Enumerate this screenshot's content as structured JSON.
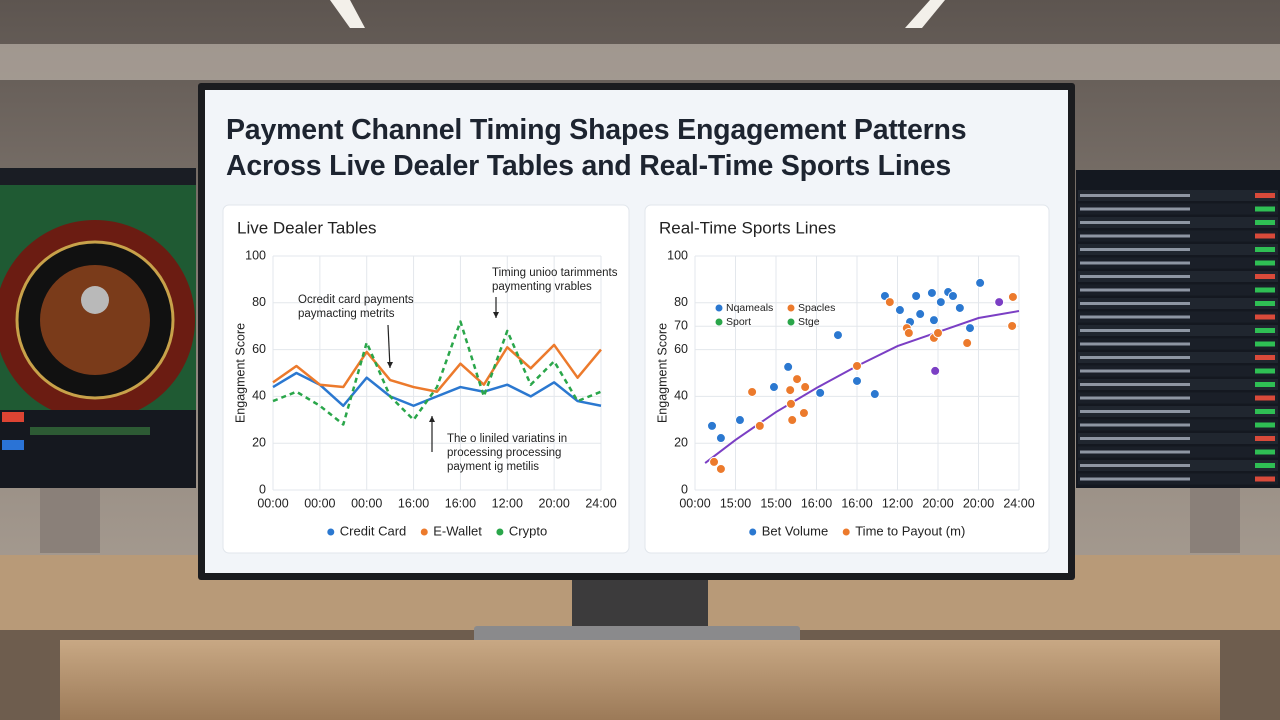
{
  "title": "Payment Channel Timing Shapes Engagement Patterns Across Live Dealer Tables and Real-Time Sports Lines",
  "chart_data": [
    {
      "type": "line",
      "title": "Live Dealer Tables",
      "y_label": "Engagment Score",
      "categories": [
        "00:00",
        null,
        "00:00",
        null,
        "00:00",
        null,
        "16:00",
        null,
        "16:00",
        null,
        "12:00",
        null,
        "20:00",
        null,
        "24:00"
      ],
      "ylim": [
        0,
        100
      ],
      "yticks": [
        0,
        20,
        40,
        60,
        80,
        100
      ],
      "grid": true,
      "series": [
        {
          "name": "Credit Card",
          "color": "#2b78d0",
          "values": [
            44,
            50,
            45,
            36,
            48,
            40,
            36,
            40,
            44,
            42,
            45,
            40,
            46,
            38,
            36
          ]
        },
        {
          "name": "E-Wallet",
          "color": "#ec7a2c",
          "values": [
            46,
            53,
            45,
            44,
            59,
            47,
            44,
            42,
            54,
            45,
            61,
            52,
            62,
            48,
            60
          ]
        },
        {
          "name": "Crypto",
          "color": "#2aa64a",
          "dash": true,
          "values": [
            38,
            42,
            36,
            28,
            63,
            40,
            30,
            44,
            72,
            40,
            68,
            45,
            55,
            38,
            42
          ]
        }
      ],
      "annotations": [
        {
          "lines": [
            "Ocredit card payments",
            "paymacting metrits"
          ]
        },
        {
          "lines": [
            "Timing unioo tarimments",
            "paymenting vrables"
          ]
        },
        {
          "lines": [
            "The o liniled variatins in",
            "processing processing",
            "payment ig metilis"
          ]
        }
      ]
    },
    {
      "type": "scatter",
      "title": "Real-Time Sports Lines",
      "y_label": "Engagment Score",
      "xlim": [
        0,
        8
      ],
      "xticks": [
        {
          "value": 0,
          "label": "00:00"
        },
        {
          "value": 1,
          "label": "15:00"
        },
        {
          "value": 2,
          "label": "15:00"
        },
        {
          "value": 3,
          "label": "16:00"
        },
        {
          "value": 4,
          "label": "16:00"
        },
        {
          "value": 5,
          "label": "12:00"
        },
        {
          "value": 6,
          "label": "20:00"
        },
        {
          "value": 7,
          "label": "20:00"
        },
        {
          "value": 8,
          "label": "24:00"
        }
      ],
      "ylim": [
        0,
        100
      ],
      "yticks": [
        0,
        20,
        40,
        60,
        70,
        80,
        100
      ],
      "grid": true,
      "series": [
        {
          "name": "Bet Volume",
          "color": "#2b78d0",
          "x": [
            0.42,
            0.64,
            1.11,
            1.95,
            2.3,
            3.09,
            3.53,
            4.0,
            4.44,
            4.69,
            5.06,
            5.31,
            5.46,
            5.56,
            5.85,
            5.9,
            6.07,
            6.25,
            6.37,
            6.54,
            6.79,
            7.04
          ],
          "values": [
            27.4,
            22.2,
            29.9,
            44.0,
            52.6,
            41.5,
            66.2,
            46.6,
            41.0,
            82.9,
            76.9,
            71.8,
            82.9,
            75.2,
            84.2,
            72.6,
            80.3,
            84.6,
            82.9,
            77.8,
            69.2,
            88.5
          ]
        },
        {
          "name": "Time to Payout (m)",
          "color": "#ec7a2c",
          "x": [
            0.47,
            0.64,
            1.41,
            1.6,
            2.35,
            2.37,
            2.52,
            2.72,
            2.4,
            2.69,
            4.0,
            4.81,
            5.23,
            5.28,
            5.9,
            6.0,
            6.72,
            7.85,
            7.83
          ],
          "values": [
            12.0,
            9.0,
            41.9,
            27.4,
            42.7,
            36.8,
            47.4,
            44.0,
            29.9,
            32.9,
            53.0,
            80.3,
            69.2,
            67.1,
            65.0,
            67.1,
            62.8,
            82.5,
            70.1
          ]
        },
        {
          "color": "#7b3fc4",
          "x": [
            5.93,
            7.51
          ],
          "values": [
            50.9,
            80.3
          ]
        }
      ],
      "trend": {
        "color": "#7b3fc4",
        "x": [
          0.25,
          1,
          2,
          3,
          4,
          5,
          6,
          7,
          8
        ],
        "values": [
          11.5,
          21.4,
          33.3,
          43.6,
          53,
          61.5,
          67.5,
          73.5,
          76.5
        ]
      },
      "inset_legend": [
        {
          "name": "Nqameals",
          "color": "#2b78d0"
        },
        {
          "name": "Spacles",
          "color": "#ec7a2c"
        },
        {
          "name": "Sport",
          "color": "#2aa64a"
        },
        {
          "name": "Stge",
          "color": "#2aa64a"
        }
      ]
    }
  ]
}
